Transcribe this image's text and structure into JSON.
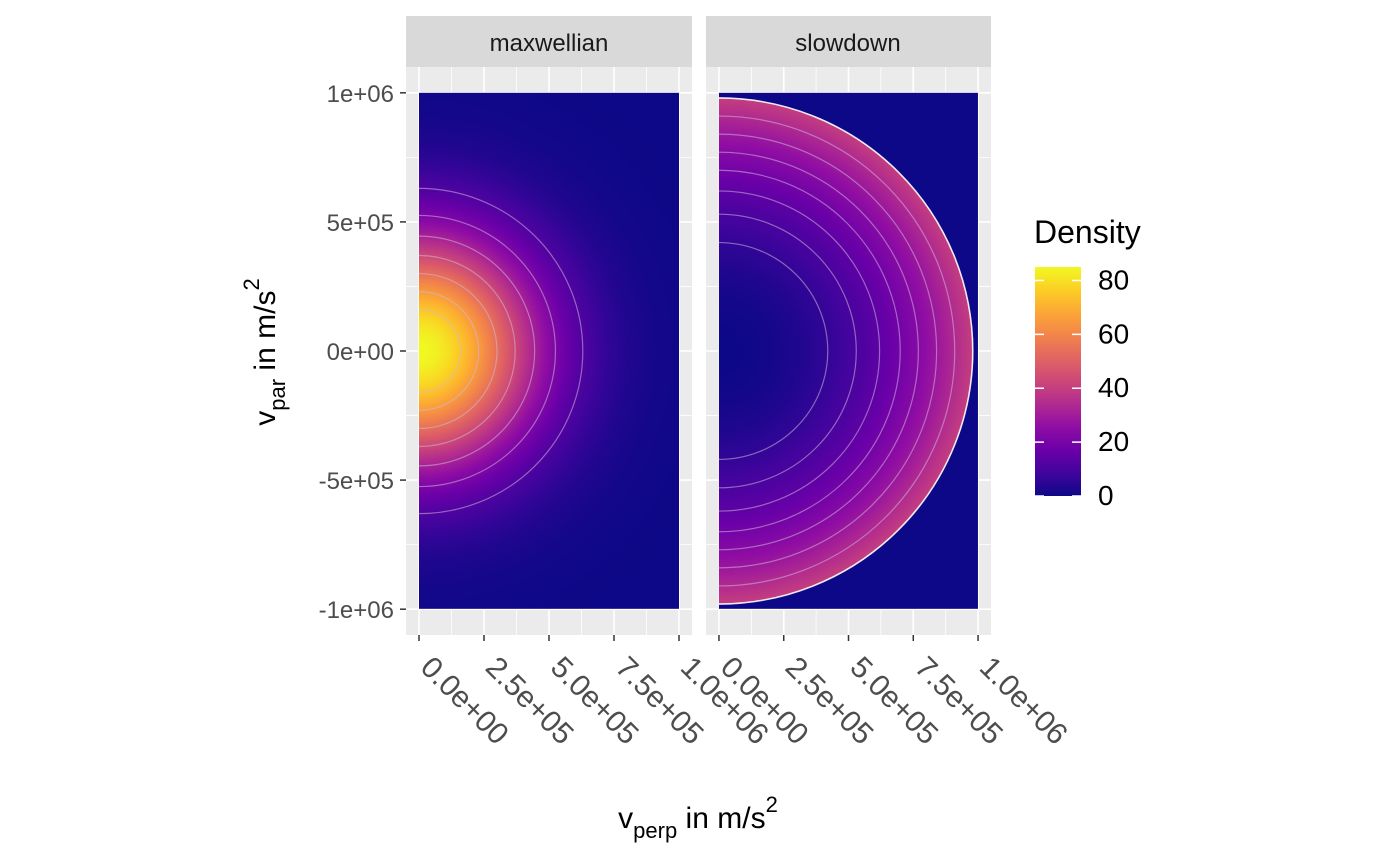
{
  "chart_data": {
    "type": "heatmap",
    "colors": {
      "panel_background": "#ebebeb",
      "strip_background": "#d9d9d9",
      "grid": "#ffffff",
      "contour": "#d0b8d8",
      "colormap": "plasma"
    },
    "facets": [
      {
        "label": "maxwellian",
        "distribution": "maxwellian",
        "peak_density": 85,
        "contour_radii": [
          0.16,
          0.23,
          0.3,
          0.37,
          0.445,
          0.525,
          0.63
        ]
      },
      {
        "label": "slowdown",
        "distribution": "slowdown",
        "edge_density": 40,
        "cutoff_radius": 0.98,
        "contour_radii": [
          0.42,
          0.53,
          0.62,
          0.7,
          0.77,
          0.84,
          0.91,
          0.98
        ]
      }
    ],
    "x": {
      "ticks": [
        0,
        250000,
        500000,
        750000,
        1000000
      ],
      "tick_labels": [
        "0.0e+00",
        "2.5e+05",
        "5.0e+05",
        "7.5e+05",
        "1.0e+06"
      ],
      "range": [
        -50000,
        1050000
      ],
      "label_main": "v",
      "label_sub": "perp",
      "label_rest": " in m/s",
      "label_sup": "2"
    },
    "y": {
      "ticks": [
        1000000,
        500000,
        0,
        -500000,
        -1000000
      ],
      "tick_labels": [
        "1e+06",
        "5e+05",
        "0e+00",
        "-5e+05",
        "-1e+06"
      ],
      "range": [
        -1100000,
        1100000
      ],
      "label_main": "v",
      "label_sub": "par",
      "label_rest": " in m/s",
      "label_sup": "2"
    },
    "legend": {
      "title": "Density",
      "range": [
        0,
        85
      ],
      "ticks": [
        80,
        60,
        40,
        20,
        0
      ],
      "tick_labels": [
        "80",
        "60",
        "40",
        "20",
        "0"
      ]
    }
  }
}
